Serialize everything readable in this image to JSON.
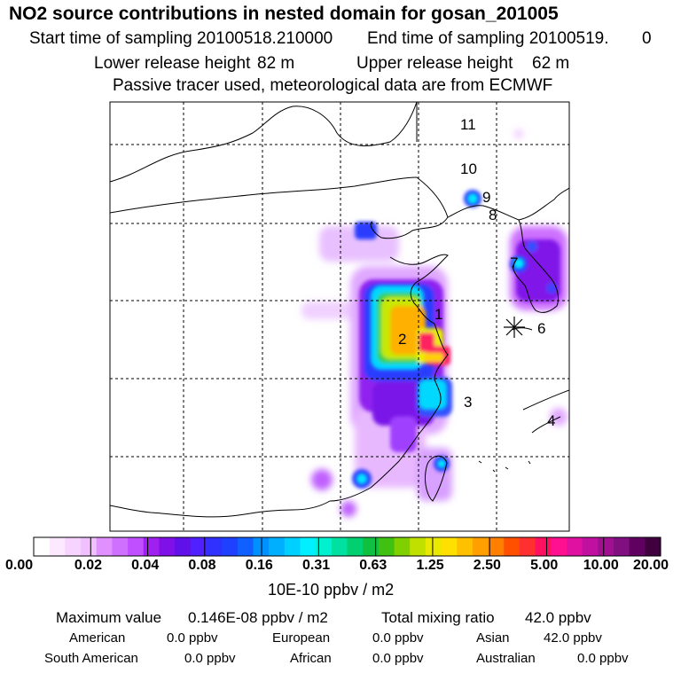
{
  "title": "NO2 source contributions in nested domain for gosan_201005",
  "header": {
    "start_label": "Start time of sampling 20100518.210000",
    "end_label": "End time of sampling 20100519.",
    "end_value": "0",
    "lower_label": "Lower release height",
    "lower_value": "82 m",
    "upper_label": "Upper release height",
    "upper_value": "62 m",
    "tracer_note": "Passive tracer used, meteorological data are from ECMWF"
  },
  "map": {
    "region_labels": [
      "1",
      "2",
      "3",
      "4",
      "6",
      "7",
      "8",
      "9",
      "10",
      "11"
    ],
    "receptor_marker": "asterisk-icon",
    "colors": {
      "low": "#e8b8ff",
      "mid_purple": "#b030ff",
      "blue": "#2a3cff",
      "cyan": "#00e0ff",
      "green": "#30d040",
      "yellow": "#e8f000",
      "orange": "#ffa000",
      "red": "#ff2060"
    }
  },
  "colorbar": {
    "colors": [
      "#ffffff",
      "#fce8ff",
      "#f6d4ff",
      "#f0c0ff",
      "#e090ff",
      "#d070ff",
      "#c050ff",
      "#a020f0",
      "#8010e8",
      "#6010e8",
      "#5020ff",
      "#3030ff",
      "#2040ff",
      "#1060ff",
      "#0090ff",
      "#00b0ff",
      "#00d0ff",
      "#00f0ff",
      "#00f0d0",
      "#00e0a0",
      "#00d070",
      "#10c040",
      "#40c010",
      "#80d000",
      "#c0e000",
      "#e8e800",
      "#ffe000",
      "#ffc000",
      "#ffa000",
      "#ff8000",
      "#ff5000",
      "#ff3030",
      "#ff1060",
      "#ff1090",
      "#e010a0",
      "#c010a0",
      "#a01090",
      "#801080",
      "#600060",
      "#400040"
    ],
    "tick_labels": [
      "0.00",
      "0.02",
      "0.04",
      "0.08",
      "0.16",
      "0.31",
      "0.63",
      "1.25",
      "2.50",
      "5.00",
      "10.00",
      "20.00"
    ],
    "units": "10E-10 ppbv / m2"
  },
  "stats": {
    "max_label": "Maximum value",
    "max_value": "0.146E-08 ppbv / m2",
    "total_label": "Total mixing ratio",
    "total_value": "42.0 ppbv",
    "sources": [
      {
        "name": "American",
        "value": "0.0 ppbv"
      },
      {
        "name": "European",
        "value": "0.0 ppbv"
      },
      {
        "name": "Asian",
        "value": "42.0 ppbv"
      },
      {
        "name": "South American",
        "value": "0.0 ppbv"
      },
      {
        "name": "African",
        "value": "0.0 ppbv"
      },
      {
        "name": "Australian",
        "value": "0.0 ppbv"
      }
    ]
  }
}
